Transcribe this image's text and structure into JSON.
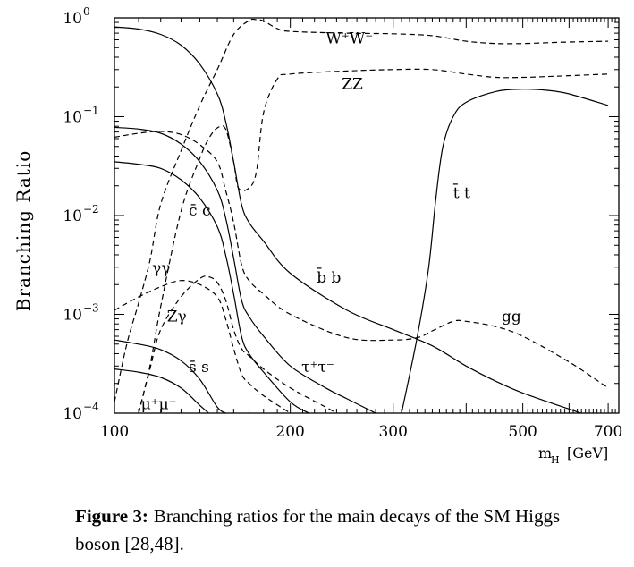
{
  "chart_data": {
    "type": "line",
    "xlabel_main": "m",
    "xlabel_sub": "H",
    "xlabel_unit": "[GeV]",
    "ylabel": "Branching Ratio",
    "x_scale": "log",
    "y_scale": "log",
    "xlim": [
      100,
      730
    ],
    "ylim": [
      0.0001,
      1
    ],
    "x_ticks": [
      {
        "value": 100,
        "label": "100"
      },
      {
        "value": 200,
        "label": "200"
      },
      {
        "value": 300,
        "label": "300"
      },
      {
        "value": 500,
        "label": "500"
      },
      {
        "value": 700,
        "label": "700"
      }
    ],
    "y_ticks": [
      {
        "value": 1,
        "base": "10",
        "exp": "0"
      },
      {
        "value": 0.1,
        "base": "10",
        "exp": "−1"
      },
      {
        "value": 0.01,
        "base": "10",
        "exp": "−2"
      },
      {
        "value": 0.001,
        "base": "10",
        "exp": "−3"
      },
      {
        "value": 0.0001,
        "base": "10",
        "exp": "−4"
      }
    ],
    "grid": false,
    "series": [
      {
        "id": "bb",
        "style": "solid",
        "label": "b̄ b",
        "points": [
          [
            100,
            0.81
          ],
          [
            110,
            0.77
          ],
          [
            120,
            0.68
          ],
          [
            130,
            0.53
          ],
          [
            140,
            0.34
          ],
          [
            150,
            0.17
          ],
          [
            155,
            0.09
          ],
          [
            160,
            0.035
          ],
          [
            165,
            0.013
          ],
          [
            170,
            0.0085
          ],
          [
            180,
            0.0055
          ],
          [
            200,
            0.0026
          ],
          [
            250,
            0.0011
          ],
          [
            300,
            0.0007
          ],
          [
            350,
            0.00048
          ],
          [
            400,
            0.0003
          ],
          [
            450,
            0.00021
          ],
          [
            500,
            0.00016
          ],
          [
            600,
            0.00011
          ],
          [
            700,
            8e-05
          ]
        ]
      },
      {
        "id": "tautau",
        "style": "solid",
        "label": "τ⁺τ⁻",
        "points": [
          [
            100,
            0.078
          ],
          [
            110,
            0.075
          ],
          [
            120,
            0.068
          ],
          [
            130,
            0.053
          ],
          [
            140,
            0.035
          ],
          [
            150,
            0.018
          ],
          [
            155,
            0.0095
          ],
          [
            160,
            0.0037
          ],
          [
            165,
            0.0014
          ],
          [
            170,
            0.00095
          ],
          [
            180,
            0.0006
          ],
          [
            200,
            0.0003
          ],
          [
            230,
            0.00018
          ],
          [
            250,
            0.00014
          ],
          [
            280,
            0.0001
          ]
        ]
      },
      {
        "id": "cc",
        "style": "solid",
        "label": "c̄ c",
        "points": [
          [
            100,
            0.035
          ],
          [
            110,
            0.033
          ],
          [
            120,
            0.03
          ],
          [
            130,
            0.023
          ],
          [
            140,
            0.015
          ],
          [
            150,
            0.0077
          ],
          [
            155,
            0.004
          ],
          [
            160,
            0.0016
          ],
          [
            165,
            0.0006
          ],
          [
            170,
            0.0004
          ],
          [
            180,
            0.00026
          ],
          [
            200,
            0.00013
          ],
          [
            215,
            0.0001
          ]
        ]
      },
      {
        "id": "ss",
        "style": "solid",
        "label": "s̄ s",
        "points": [
          [
            100,
            0.00055
          ],
          [
            110,
            0.0005
          ],
          [
            120,
            0.00044
          ],
          [
            130,
            0.00034
          ],
          [
            140,
            0.00022
          ],
          [
            150,
            0.000115
          ],
          [
            155,
            0.0001
          ]
        ]
      },
      {
        "id": "mumu",
        "style": "solid",
        "label": "μ⁺μ⁻",
        "points": [
          [
            100,
            0.00028
          ],
          [
            110,
            0.00026
          ],
          [
            120,
            0.00023
          ],
          [
            130,
            0.00018
          ],
          [
            140,
            0.00012
          ],
          [
            145,
            0.0001
          ]
        ]
      },
      {
        "id": "tt",
        "style": "solid",
        "label": "t̄ t",
        "points": [
          [
            310,
            0.0001
          ],
          [
            330,
            0.0006
          ],
          [
            345,
            0.003
          ],
          [
            355,
            0.015
          ],
          [
            365,
            0.05
          ],
          [
            380,
            0.1
          ],
          [
            400,
            0.14
          ],
          [
            450,
            0.18
          ],
          [
            500,
            0.19
          ],
          [
            550,
            0.185
          ],
          [
            600,
            0.17
          ],
          [
            700,
            0.13
          ]
        ]
      },
      {
        "id": "WW",
        "style": "dashed",
        "label": "W⁺W⁻",
        "points": [
          [
            100,
            0.00013
          ],
          [
            105,
            0.0005
          ],
          [
            110,
            0.0013
          ],
          [
            115,
            0.0035
          ],
          [
            120,
            0.013
          ],
          [
            130,
            0.045
          ],
          [
            140,
            0.13
          ],
          [
            150,
            0.3
          ],
          [
            160,
            0.68
          ],
          [
            170,
            0.94
          ],
          [
            175,
            0.96
          ],
          [
            180,
            0.93
          ],
          [
            190,
            0.78
          ],
          [
            200,
            0.73
          ],
          [
            250,
            0.7
          ],
          [
            300,
            0.69
          ],
          [
            350,
            0.66
          ],
          [
            400,
            0.58
          ],
          [
            450,
            0.55
          ],
          [
            500,
            0.55
          ],
          [
            550,
            0.56
          ],
          [
            600,
            0.57
          ],
          [
            700,
            0.58
          ]
        ]
      },
      {
        "id": "ZZ",
        "style": "dashed",
        "label": "ZZ",
        "points": [
          [
            110,
            0.0001
          ],
          [
            115,
            0.0003
          ],
          [
            120,
            0.0012
          ],
          [
            130,
            0.011
          ],
          [
            140,
            0.038
          ],
          [
            145,
            0.06
          ],
          [
            150,
            0.077
          ],
          [
            155,
            0.075
          ],
          [
            160,
            0.035
          ],
          [
            163,
            0.019
          ],
          [
            170,
            0.019
          ],
          [
            175,
            0.028
          ],
          [
            180,
            0.11
          ],
          [
            190,
            0.24
          ],
          [
            200,
            0.27
          ],
          [
            250,
            0.29
          ],
          [
            300,
            0.3
          ],
          [
            350,
            0.3
          ],
          [
            400,
            0.27
          ],
          [
            450,
            0.25
          ],
          [
            500,
            0.25
          ],
          [
            550,
            0.255
          ],
          [
            600,
            0.26
          ],
          [
            700,
            0.27
          ]
        ]
      },
      {
        "id": "gg",
        "style": "dashed",
        "label": "gg",
        "points": [
          [
            100,
            0.062
          ],
          [
            110,
            0.068
          ],
          [
            120,
            0.071
          ],
          [
            130,
            0.066
          ],
          [
            140,
            0.052
          ],
          [
            150,
            0.035
          ],
          [
            155,
            0.018
          ],
          [
            160,
            0.0085
          ],
          [
            165,
            0.0032
          ],
          [
            170,
            0.0022
          ],
          [
            180,
            0.0016
          ],
          [
            200,
            0.001
          ],
          [
            250,
            0.00058
          ],
          [
            300,
            0.00055
          ],
          [
            330,
            0.00058
          ],
          [
            350,
            0.00068
          ],
          [
            380,
            0.00085
          ],
          [
            400,
            0.00085
          ],
          [
            450,
            0.00075
          ],
          [
            500,
            0.0006
          ],
          [
            600,
            0.00033
          ],
          [
            700,
            0.00018
          ]
        ]
      },
      {
        "id": "gamgam",
        "style": "dashed",
        "label": "γγ",
        "points": [
          [
            100,
            0.0011
          ],
          [
            110,
            0.0015
          ],
          [
            120,
            0.0019
          ],
          [
            130,
            0.0022
          ],
          [
            140,
            0.002
          ],
          [
            150,
            0.0015
          ],
          [
            155,
            0.0009
          ],
          [
            160,
            0.00045
          ],
          [
            165,
            0.00025
          ],
          [
            170,
            0.0002
          ],
          [
            180,
            0.00015
          ],
          [
            200,
            0.0001
          ]
        ]
      },
      {
        "id": "Zgam",
        "style": "dashed",
        "label": "Zγ",
        "points": [
          [
            110,
            0.0001
          ],
          [
            115,
            0.00028
          ],
          [
            120,
            0.0007
          ],
          [
            130,
            0.0015
          ],
          [
            140,
            0.0023
          ],
          [
            145,
            0.0024
          ],
          [
            150,
            0.0021
          ],
          [
            155,
            0.0014
          ],
          [
            160,
            0.0007
          ],
          [
            165,
            0.00045
          ],
          [
            170,
            0.00038
          ],
          [
            180,
            0.00028
          ],
          [
            200,
            0.00018
          ],
          [
            230,
            0.000115
          ],
          [
            240,
            0.0001
          ]
        ]
      }
    ],
    "labels": [
      {
        "series": "WW",
        "text": "W⁺W⁻",
        "at": [
          230,
          0.55
        ]
      },
      {
        "series": "ZZ",
        "text": "ZZ",
        "at": [
          245,
          0.19
        ]
      },
      {
        "series": "tt",
        "text": "t̄ t",
        "at": [
          380,
          0.015
        ]
      },
      {
        "series": "cc",
        "text": "c̄ c",
        "at": [
          134,
          0.01
        ]
      },
      {
        "series": "bb",
        "text": "b̄ b",
        "at": [
          222,
          0.0021
        ]
      },
      {
        "series": "gamgam",
        "text": "γγ",
        "at": [
          116,
          0.0026
        ]
      },
      {
        "series": "Zgam",
        "text": "Zγ",
        "at": [
          123,
          0.00085
        ]
      },
      {
        "series": "gg",
        "text": "gg",
        "at": [
          460,
          0.00085
        ]
      },
      {
        "series": "ss",
        "text": "s̄ s",
        "at": [
          134,
          0.00026
        ]
      },
      {
        "series": "tautau",
        "text": "τ⁺τ⁻",
        "at": [
          209,
          0.00026
        ]
      },
      {
        "series": "mumu",
        "text": "μ⁺μ⁻",
        "at": [
          111,
          0.00011
        ]
      }
    ]
  },
  "caption": {
    "label": "Figure 3:",
    "text": "Branching ratios for the main decays of the SM Higgs boson [28,48]."
  }
}
